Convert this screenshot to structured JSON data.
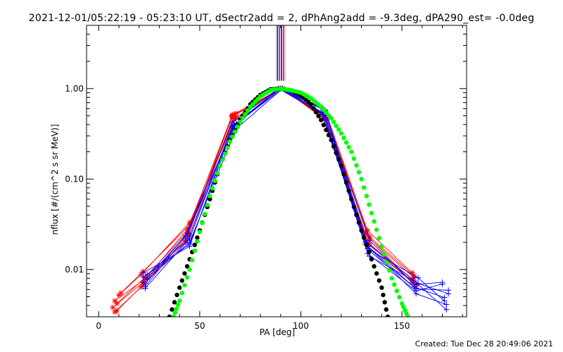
{
  "title": "2021-12-01/05:22:19 - 05:23:10 UT, dSectr2add = 2, dPhAng2add = -9.3deg, dPA290_est= -0.0deg",
  "footer": "Created: Tue Dec 28 20:49:06 2021",
  "colors": {
    "red": "#ff0000",
    "blue": "#0000ff",
    "green": "#00ff00",
    "black": "#000000",
    "grey": "#bbbbbb"
  },
  "chart_data": {
    "type": "line",
    "xlabel": "PA [deg]",
    "ylabel": "nflux [#/(cm^2 s sr MeV)]",
    "xlim": [
      -6,
      182
    ],
    "ylim": [
      0.003,
      5.0
    ],
    "yscale": "log",
    "x_ticks": [
      0,
      50,
      100,
      150
    ],
    "y_ticks": [
      {
        "value": 0.01,
        "label": "0.01"
      },
      {
        "value": 0.1,
        "label": "0.10"
      },
      {
        "value": 1.0,
        "label": "1.00"
      }
    ],
    "reference_lines": {
      "x": [
        88.5,
        89.5,
        90.5,
        91.5
      ],
      "y_from": 1.22,
      "y_to": 5.0
    },
    "series": [
      {
        "kind": "fit",
        "color": "black",
        "marker": "dot",
        "x": [
          35,
          40,
          45,
          50,
          55,
          60,
          65,
          70,
          75,
          80,
          85,
          90,
          95,
          100,
          105,
          110,
          115,
          120,
          125,
          130,
          135,
          140,
          143
        ],
        "y": [
          0.003,
          0.0063,
          0.013,
          0.027,
          0.06,
          0.14,
          0.27,
          0.45,
          0.67,
          0.85,
          0.98,
          1.0,
          0.96,
          0.85,
          0.67,
          0.45,
          0.27,
          0.14,
          0.06,
          0.027,
          0.013,
          0.0063,
          0.003
        ]
      },
      {
        "kind": "fit",
        "color": "green",
        "marker": "dot",
        "x": [
          37,
          40,
          45,
          50,
          55,
          60,
          65,
          70,
          75,
          80,
          85,
          90,
          95,
          100,
          105,
          110,
          115,
          120,
          125,
          130,
          135,
          140,
          145,
          150,
          153
        ],
        "y": [
          0.003,
          0.0045,
          0.01,
          0.026,
          0.065,
          0.14,
          0.26,
          0.43,
          0.63,
          0.82,
          0.96,
          1.0,
          0.96,
          0.9,
          0.78,
          0.63,
          0.47,
          0.32,
          0.2,
          0.1,
          0.042,
          0.018,
          0.008,
          0.0042,
          0.003
        ]
      },
      {
        "kind": "obs",
        "color": "red",
        "marker": "asterisk",
        "x": [
          9,
          22,
          45,
          67,
          91,
          112,
          133,
          155
        ],
        "y": [
          0.0035,
          0.0068,
          0.024,
          0.52,
          1.0,
          0.49,
          0.02,
          0.0078
        ]
      },
      {
        "kind": "obs",
        "color": "red",
        "marker": "asterisk",
        "x": [
          8,
          23,
          44,
          66,
          90,
          113,
          134,
          156
        ],
        "y": [
          0.0045,
          0.0079,
          0.028,
          0.5,
          1.0,
          0.47,
          0.022,
          0.0081
        ]
      },
      {
        "kind": "obs",
        "color": "red",
        "marker": "asterisk",
        "x": [
          10,
          21,
          45,
          68,
          90,
          111,
          132,
          155
        ],
        "y": [
          0.0052,
          0.0088,
          0.033,
          0.48,
          1.0,
          0.51,
          0.025,
          0.0072
        ]
      },
      {
        "kind": "obs",
        "color": "red",
        "marker": "asterisk",
        "x": [
          7,
          22,
          43,
          66,
          91,
          112,
          133,
          157
        ],
        "y": [
          0.0038,
          0.0072,
          0.021,
          0.51,
          1.0,
          0.46,
          0.018,
          0.0069
        ]
      },
      {
        "kind": "obs",
        "color": "red",
        "marker": "asterisk",
        "x": [
          9,
          23,
          44,
          67,
          89,
          113,
          134,
          156
        ],
        "y": [
          0.0042,
          0.0082,
          0.026,
          0.46,
          1.0,
          0.5,
          0.023,
          0.0085
        ]
      },
      {
        "kind": "obs",
        "color": "red",
        "marker": "asterisk",
        "x": [
          11,
          22,
          45,
          68,
          90,
          112,
          133,
          155
        ],
        "y": [
          0.0055,
          0.0095,
          0.031,
          0.53,
          1.0,
          0.48,
          0.027,
          0.0092
        ]
      },
      {
        "kind": "obs",
        "color": "red",
        "marker": "asterisk",
        "x": [
          8,
          21,
          43,
          66,
          91,
          111,
          134,
          157
        ],
        "y": [
          0.0034,
          0.0064,
          0.02,
          0.49,
          1.0,
          0.47,
          0.019,
          0.0066
        ]
      },
      {
        "kind": "obs",
        "color": "blue",
        "marker": "plus",
        "x": [
          23,
          45,
          66,
          90,
          111,
          133,
          157,
          172
        ],
        "y": [
          0.0062,
          0.022,
          0.38,
          1.0,
          0.6,
          0.018,
          0.0054,
          0.0041
        ]
      },
      {
        "kind": "obs",
        "color": "blue",
        "marker": "plus",
        "x": [
          22,
          44,
          67,
          90,
          112,
          134,
          156,
          171
        ],
        "y": [
          0.0072,
          0.025,
          0.4,
          1.0,
          0.58,
          0.016,
          0.0064,
          0.0049
        ]
      },
      {
        "kind": "obs",
        "color": "blue",
        "marker": "plus",
        "x": [
          24,
          45,
          68,
          91,
          110,
          132,
          158,
          173
        ],
        "y": [
          0.0078,
          0.02,
          0.36,
          1.0,
          0.55,
          0.02,
          0.007,
          0.0054
        ]
      },
      {
        "kind": "obs",
        "color": "blue",
        "marker": "plus",
        "x": [
          23,
          43,
          66,
          89,
          111,
          133,
          157,
          170
        ],
        "y": [
          0.0065,
          0.023,
          0.42,
          1.0,
          0.52,
          0.015,
          0.0058,
          0.0069
        ]
      },
      {
        "kind": "obs",
        "color": "blue",
        "marker": "plus",
        "x": [
          22,
          45,
          67,
          90,
          112,
          134,
          156,
          172
        ],
        "y": [
          0.0082,
          0.019,
          0.39,
          1.0,
          0.57,
          0.014,
          0.0075,
          0.0036
        ]
      },
      {
        "kind": "obs",
        "color": "blue",
        "marker": "plus",
        "x": [
          24,
          44,
          66,
          90,
          111,
          133,
          158,
          171
        ],
        "y": [
          0.0088,
          0.021,
          0.37,
          1.0,
          0.54,
          0.017,
          0.0081,
          0.0045
        ]
      },
      {
        "kind": "obs",
        "color": "blue",
        "marker": "plus",
        "x": [
          23,
          43,
          68,
          91,
          110,
          132,
          157,
          173
        ],
        "y": [
          0.007,
          0.024,
          0.41,
          1.0,
          0.62,
          0.019,
          0.0061,
          0.0059
        ]
      },
      {
        "kind": "obs",
        "color": "blue",
        "marker": "plus",
        "x": [
          22,
          45,
          66,
          89,
          112,
          134,
          156,
          170
        ],
        "y": [
          0.0092,
          0.018,
          0.38,
          1.0,
          0.5,
          0.021,
          0.0068,
          0.0072
        ]
      }
    ]
  }
}
